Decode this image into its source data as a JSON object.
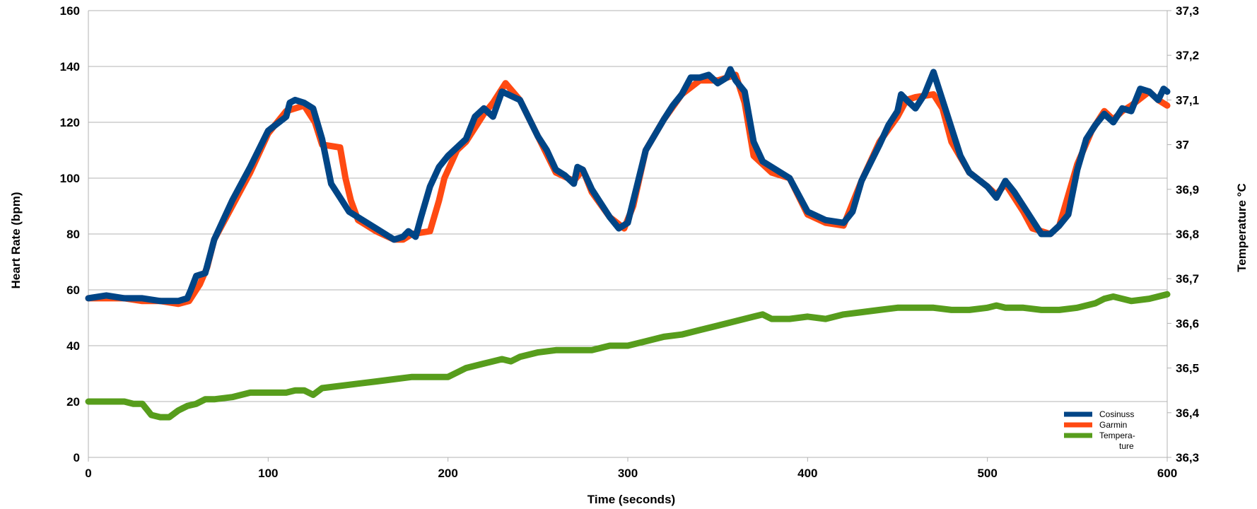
{
  "chart_data": {
    "type": "line",
    "title": "",
    "xlabel": "Time (seconds)",
    "ylabel": "Heart Rate (bpm)",
    "y2label": "Temperature °C",
    "xlim": [
      0,
      600
    ],
    "ylim": [
      0,
      160
    ],
    "y2lim": [
      36.3,
      37.3
    ],
    "x_ticks": [
      "0",
      "100",
      "200",
      "300",
      "400",
      "500",
      "600"
    ],
    "y_ticks": [
      "0",
      "20",
      "40",
      "60",
      "80",
      "100",
      "120",
      "140",
      "160"
    ],
    "y2_ticks": [
      "36,3",
      "36,4",
      "36,5",
      "36,6",
      "36,7",
      "36,8",
      "36,9",
      "37",
      "37,1",
      "37,2",
      "37,3"
    ],
    "grid": true,
    "legend_position": "bottom-right",
    "series": [
      {
        "name": "Garmin",
        "axis": "left",
        "color": "#ff4a12",
        "points": [
          [
            0,
            57
          ],
          [
            10,
            57
          ],
          [
            20,
            57
          ],
          [
            30,
            56
          ],
          [
            40,
            56
          ],
          [
            50,
            55
          ],
          [
            56,
            56
          ],
          [
            58,
            58
          ],
          [
            62,
            62
          ],
          [
            66,
            68
          ],
          [
            70,
            78
          ],
          [
            80,
            90
          ],
          [
            90,
            102
          ],
          [
            100,
            116
          ],
          [
            110,
            124
          ],
          [
            120,
            126
          ],
          [
            126,
            120
          ],
          [
            130,
            112
          ],
          [
            140,
            111
          ],
          [
            143,
            100
          ],
          [
            146,
            92
          ],
          [
            150,
            85
          ],
          [
            160,
            81
          ],
          [
            170,
            78
          ],
          [
            175,
            78
          ],
          [
            180,
            80
          ],
          [
            190,
            81
          ],
          [
            195,
            92
          ],
          [
            198,
            100
          ],
          [
            205,
            110
          ],
          [
            210,
            113
          ],
          [
            220,
            123
          ],
          [
            225,
            127
          ],
          [
            232,
            134
          ],
          [
            240,
            128
          ],
          [
            250,
            115
          ],
          [
            260,
            102
          ],
          [
            270,
            99
          ],
          [
            275,
            103
          ],
          [
            280,
            95
          ],
          [
            290,
            86
          ],
          [
            298,
            82
          ],
          [
            303,
            90
          ],
          [
            310,
            110
          ],
          [
            320,
            121
          ],
          [
            330,
            130
          ],
          [
            340,
            135
          ],
          [
            350,
            135
          ],
          [
            360,
            137
          ],
          [
            365,
            127
          ],
          [
            370,
            108
          ],
          [
            380,
            102
          ],
          [
            390,
            100
          ],
          [
            400,
            87
          ],
          [
            410,
            84
          ],
          [
            420,
            83
          ],
          [
            430,
            99
          ],
          [
            440,
            113
          ],
          [
            450,
            122
          ],
          [
            455,
            128
          ],
          [
            460,
            129
          ],
          [
            470,
            130
          ],
          [
            475,
            125
          ],
          [
            480,
            113
          ],
          [
            490,
            102
          ],
          [
            500,
            97
          ],
          [
            505,
            94
          ],
          [
            510,
            98
          ],
          [
            520,
            88
          ],
          [
            525,
            82
          ],
          [
            535,
            80
          ],
          [
            540,
            83
          ],
          [
            550,
            105
          ],
          [
            558,
            117
          ],
          [
            565,
            124
          ],
          [
            570,
            121
          ],
          [
            575,
            124
          ],
          [
            580,
            126
          ],
          [
            590,
            131
          ],
          [
            595,
            128
          ],
          [
            600,
            126
          ]
        ]
      },
      {
        "name": "Cosinuss",
        "axis": "left",
        "color": "#004586",
        "points": [
          [
            0,
            57
          ],
          [
            10,
            58
          ],
          [
            20,
            57
          ],
          [
            30,
            57
          ],
          [
            40,
            56
          ],
          [
            50,
            56
          ],
          [
            55,
            57
          ],
          [
            57,
            60
          ],
          [
            60,
            65
          ],
          [
            65,
            66
          ],
          [
            70,
            78
          ],
          [
            80,
            92
          ],
          [
            90,
            104
          ],
          [
            100,
            117
          ],
          [
            110,
            122
          ],
          [
            112,
            127
          ],
          [
            115,
            128
          ],
          [
            120,
            127
          ],
          [
            125,
            125
          ],
          [
            130,
            114
          ],
          [
            135,
            98
          ],
          [
            140,
            93
          ],
          [
            145,
            88
          ],
          [
            150,
            86
          ],
          [
            160,
            82
          ],
          [
            170,
            78
          ],
          [
            175,
            79
          ],
          [
            178,
            81
          ],
          [
            182,
            79
          ],
          [
            185,
            86
          ],
          [
            190,
            97
          ],
          [
            195,
            104
          ],
          [
            200,
            108
          ],
          [
            205,
            111
          ],
          [
            210,
            114
          ],
          [
            215,
            122
          ],
          [
            220,
            125
          ],
          [
            225,
            122
          ],
          [
            230,
            131
          ],
          [
            240,
            128
          ],
          [
            250,
            115
          ],
          [
            255,
            110
          ],
          [
            260,
            103
          ],
          [
            265,
            101
          ],
          [
            270,
            98
          ],
          [
            272,
            104
          ],
          [
            275,
            103
          ],
          [
            280,
            96
          ],
          [
            290,
            86
          ],
          [
            295,
            82
          ],
          [
            300,
            84
          ],
          [
            305,
            97
          ],
          [
            310,
            110
          ],
          [
            320,
            121
          ],
          [
            325,
            126
          ],
          [
            330,
            130
          ],
          [
            335,
            136
          ],
          [
            340,
            136
          ],
          [
            345,
            137
          ],
          [
            350,
            134
          ],
          [
            355,
            136
          ],
          [
            357,
            139
          ],
          [
            360,
            135
          ],
          [
            365,
            131
          ],
          [
            370,
            113
          ],
          [
            375,
            106
          ],
          [
            380,
            104
          ],
          [
            390,
            100
          ],
          [
            400,
            88
          ],
          [
            410,
            85
          ],
          [
            420,
            84
          ],
          [
            425,
            88
          ],
          [
            430,
            99
          ],
          [
            440,
            112
          ],
          [
            445,
            119
          ],
          [
            450,
            124
          ],
          [
            452,
            130
          ],
          [
            455,
            128
          ],
          [
            460,
            125
          ],
          [
            465,
            130
          ],
          [
            470,
            138
          ],
          [
            475,
            128
          ],
          [
            480,
            118
          ],
          [
            485,
            108
          ],
          [
            490,
            102
          ],
          [
            500,
            97
          ],
          [
            505,
            93
          ],
          [
            510,
            99
          ],
          [
            515,
            95
          ],
          [
            520,
            90
          ],
          [
            525,
            85
          ],
          [
            530,
            80
          ],
          [
            535,
            80
          ],
          [
            540,
            83
          ],
          [
            545,
            87
          ],
          [
            550,
            103
          ],
          [
            555,
            114
          ],
          [
            560,
            119
          ],
          [
            565,
            123
          ],
          [
            570,
            120
          ],
          [
            575,
            125
          ],
          [
            580,
            124
          ],
          [
            585,
            132
          ],
          [
            590,
            131
          ],
          [
            595,
            128
          ],
          [
            598,
            132
          ],
          [
            600,
            131
          ]
        ]
      },
      {
        "name": "Tempera-ture",
        "axis": "right",
        "color": "#579d1c",
        "points": [
          [
            0,
            36.425
          ],
          [
            10,
            36.425
          ],
          [
            20,
            36.425
          ],
          [
            25,
            36.42
          ],
          [
            30,
            36.42
          ],
          [
            33,
            36.405
          ],
          [
            35,
            36.395
          ],
          [
            40,
            36.39
          ],
          [
            45,
            36.39
          ],
          [
            50,
            36.405
          ],
          [
            55,
            36.415
          ],
          [
            60,
            36.42
          ],
          [
            65,
            36.43
          ],
          [
            70,
            36.43
          ],
          [
            80,
            36.435
          ],
          [
            90,
            36.445
          ],
          [
            100,
            36.445
          ],
          [
            110,
            36.445
          ],
          [
            115,
            36.45
          ],
          [
            120,
            36.45
          ],
          [
            125,
            36.44
          ],
          [
            130,
            36.455
          ],
          [
            140,
            36.46
          ],
          [
            150,
            36.465
          ],
          [
            160,
            36.47
          ],
          [
            170,
            36.475
          ],
          [
            180,
            36.48
          ],
          [
            190,
            36.48
          ],
          [
            200,
            36.48
          ],
          [
            210,
            36.5
          ],
          [
            220,
            36.51
          ],
          [
            230,
            36.52
          ],
          [
            235,
            36.515
          ],
          [
            240,
            36.525
          ],
          [
            250,
            36.535
          ],
          [
            260,
            36.54
          ],
          [
            270,
            36.54
          ],
          [
            280,
            36.54
          ],
          [
            290,
            36.55
          ],
          [
            300,
            36.55
          ],
          [
            310,
            36.56
          ],
          [
            320,
            36.57
          ],
          [
            330,
            36.575
          ],
          [
            340,
            36.585
          ],
          [
            350,
            36.595
          ],
          [
            360,
            36.605
          ],
          [
            370,
            36.615
          ],
          [
            375,
            36.62
          ],
          [
            380,
            36.61
          ],
          [
            390,
            36.61
          ],
          [
            400,
            36.615
          ],
          [
            410,
            36.61
          ],
          [
            420,
            36.62
          ],
          [
            430,
            36.625
          ],
          [
            440,
            36.63
          ],
          [
            450,
            36.635
          ],
          [
            460,
            36.635
          ],
          [
            470,
            36.635
          ],
          [
            480,
            36.63
          ],
          [
            490,
            36.63
          ],
          [
            500,
            36.635
          ],
          [
            505,
            36.64
          ],
          [
            510,
            36.635
          ],
          [
            520,
            36.635
          ],
          [
            530,
            36.63
          ],
          [
            540,
            36.63
          ],
          [
            550,
            36.635
          ],
          [
            560,
            36.645
          ],
          [
            565,
            36.655
          ],
          [
            570,
            36.66
          ],
          [
            575,
            36.655
          ],
          [
            580,
            36.65
          ],
          [
            590,
            36.655
          ],
          [
            600,
            36.665
          ]
        ]
      }
    ],
    "legend_order": [
      "Cosinuss",
      "Garmin",
      "Tempera-ture"
    ]
  }
}
